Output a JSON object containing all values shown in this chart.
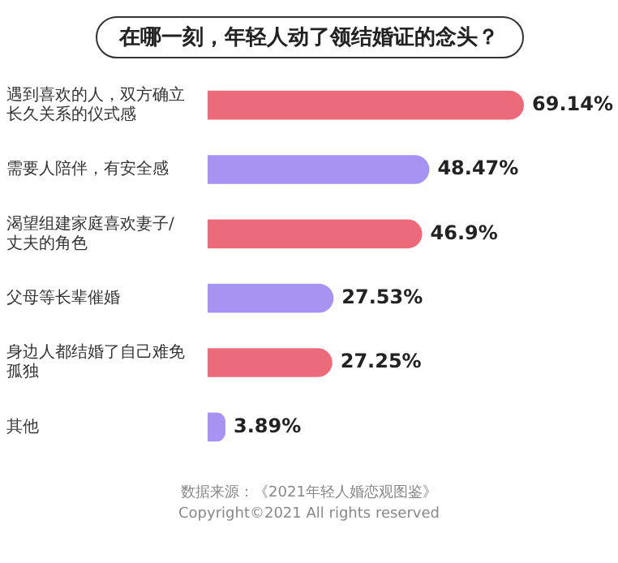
{
  "chart_data": {
    "type": "bar",
    "orientation": "horizontal",
    "title": "在哪一刻，年轻人动了领结婚证的念头？",
    "categories": [
      "遇到喜欢的人，双方确立长久关系的仪式感",
      "需要人陪伴，有安全感",
      "渴望组建家庭喜欢妻子/丈夫的角色",
      "父母等长辈催婚",
      "身边人都结婚了自己难免孤独",
      "其他"
    ],
    "values": [
      69.14,
      48.47,
      46.9,
      27.53,
      27.25,
      3.89
    ],
    "value_labels": [
      "69.14%",
      "48.47%",
      "46.9%",
      "27.53%",
      "27.25%",
      "3.89%"
    ],
    "colors": [
      "#ec6b7a",
      "#a693f2",
      "#ec6b7a",
      "#a693f2",
      "#ec6b7a",
      "#a693f2"
    ],
    "annotations": [
      "数据来源：《2021年轻人婚恋观图鉴》",
      "Copyright©2021 All rights reserved"
    ],
    "legend": false
  }
}
